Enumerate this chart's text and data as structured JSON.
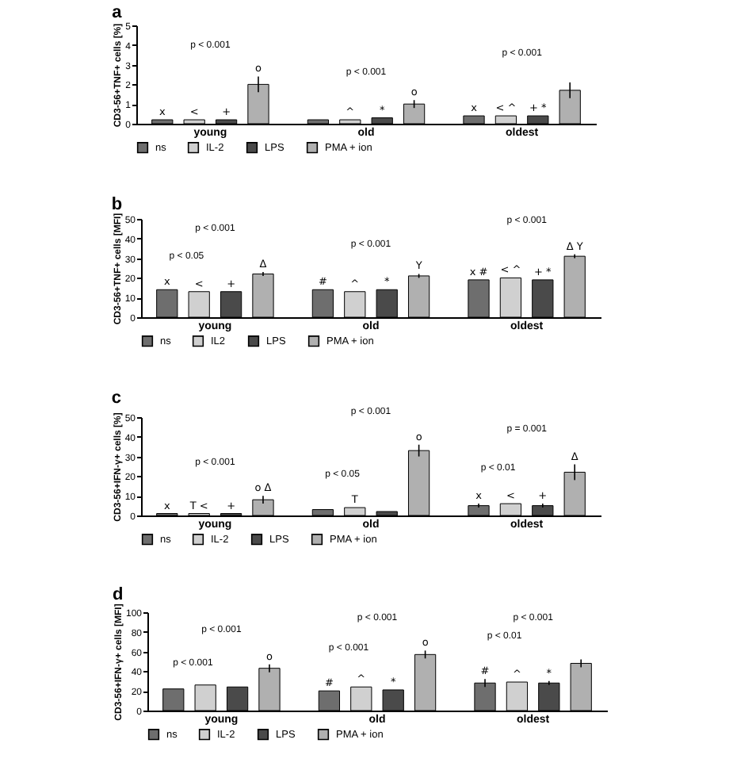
{
  "chart_data": [
    {
      "type": "bar",
      "title": "a",
      "ylabel": "CD3-56+TNF+ cells [%]",
      "categories": [
        "young",
        "old",
        "oldest"
      ],
      "ylim": [
        0,
        5
      ],
      "yticks": [
        0,
        1,
        2,
        3,
        4,
        5
      ],
      "legend": "bottom",
      "series": [
        {
          "name": "ns",
          "color": "#6e6e6e",
          "values": [
            0.2,
            0.2,
            0.4
          ],
          "value_labels": [
            "x",
            null,
            "x"
          ]
        },
        {
          "name": "IL-2",
          "color": "#d0d0d0",
          "values": [
            0.2,
            0.2,
            0.4
          ],
          "value_labels": [
            "<",
            "^",
            "< ^"
          ]
        },
        {
          "name": "LPS",
          "color": "#4a4a4a",
          "values": [
            0.2,
            0.3,
            0.4
          ],
          "value_labels": [
            "+",
            "*",
            "+ *"
          ]
        },
        {
          "name": "PMA + ion",
          "color": "#b0b0b0",
          "values": [
            2.0,
            1.0,
            1.7
          ],
          "errors": [
            0.4,
            0.2,
            0.4
          ],
          "value_labels": [
            "o",
            "o",
            null
          ]
        }
      ],
      "annotations": [
        "p < 0.001",
        "p < 0.001",
        "p < 0.001"
      ]
    },
    {
      "type": "bar",
      "title": "b",
      "ylabel": "CD3-56+TNF+ cells [MFI]",
      "categories": [
        "young",
        "old",
        "oldest"
      ],
      "ylim": [
        0,
        50
      ],
      "yticks": [
        0,
        10,
        20,
        30,
        40,
        50
      ],
      "legend": "bottom",
      "series": [
        {
          "name": "ns",
          "color": "#6e6e6e",
          "values": [
            14,
            14,
            19
          ],
          "value_labels": [
            "x",
            "#",
            "x #"
          ]
        },
        {
          "name": "IL2",
          "color": "#d0d0d0",
          "values": [
            13,
            13,
            20
          ],
          "value_labels": [
            "<",
            "^",
            "< ^"
          ]
        },
        {
          "name": "LPS",
          "color": "#4a4a4a",
          "values": [
            13,
            14,
            19
          ],
          "value_labels": [
            "+",
            "*",
            "+ *"
          ]
        },
        {
          "name": "PMA + ion",
          "color": "#b0b0b0",
          "values": [
            22,
            21,
            31
          ],
          "errors": [
            1,
            1,
            1
          ],
          "value_labels": [
            "Δ",
            "Y",
            "Δ Y"
          ]
        }
      ],
      "annotations": [
        "p < 0.001",
        "p < 0.05",
        "p < 0.001",
        "p < 0.001"
      ]
    },
    {
      "type": "bar",
      "title": "c",
      "ylabel": "CD3-56+IFN-γ+ cells [%]",
      "categories": [
        "young",
        "old",
        "oldest"
      ],
      "ylim": [
        0,
        50
      ],
      "yticks": [
        0,
        10,
        20,
        30,
        40,
        50
      ],
      "legend": "bottom",
      "series": [
        {
          "name": "ns",
          "color": "#6e6e6e",
          "values": [
            1,
            3,
            5
          ],
          "errors": [
            null,
            null,
            1
          ],
          "value_labels": [
            "x",
            null,
            "x"
          ]
        },
        {
          "name": "IL-2",
          "color": "#d0d0d0",
          "values": [
            1,
            4,
            6
          ],
          "value_labels": [
            "T <",
            "T",
            "<"
          ]
        },
        {
          "name": "LPS",
          "color": "#4a4a4a",
          "values": [
            1,
            2,
            5
          ],
          "errors": [
            null,
            null,
            1
          ],
          "value_labels": [
            "+",
            null,
            "+"
          ]
        },
        {
          "name": "PMA + ion",
          "color": "#b0b0b0",
          "values": [
            8,
            33,
            22
          ],
          "errors": [
            2,
            3,
            4
          ],
          "value_labels": [
            "o Δ",
            "o",
            "Δ"
          ]
        }
      ],
      "annotations": [
        "p < 0.001",
        "p < 0.05",
        "p < 0.001",
        "p < 0.01",
        "p = 0.001"
      ]
    },
    {
      "type": "bar",
      "title": "d",
      "ylabel": "CD3-56+IFN-γ+ cells [MFI]",
      "categories": [
        "young",
        "old",
        "oldest"
      ],
      "ylim": [
        0,
        100
      ],
      "yticks": [
        0,
        20,
        40,
        60,
        80,
        100
      ],
      "legend": "bottom",
      "series": [
        {
          "name": "ns",
          "color": "#6e6e6e",
          "values": [
            22,
            20,
            28
          ],
          "errors": [
            null,
            null,
            4
          ],
          "value_labels": [
            null,
            "#",
            "#"
          ]
        },
        {
          "name": "IL-2",
          "color": "#d0d0d0",
          "values": [
            26,
            24,
            29
          ],
          "value_labels": [
            null,
            "^",
            "^"
          ]
        },
        {
          "name": "LPS",
          "color": "#4a4a4a",
          "values": [
            24,
            21,
            28
          ],
          "errors": [
            null,
            null,
            2
          ],
          "value_labels": [
            null,
            "*",
            "*"
          ]
        },
        {
          "name": "PMA + ion",
          "color": "#b0b0b0",
          "values": [
            43,
            57,
            48
          ],
          "errors": [
            4,
            4,
            4
          ],
          "value_labels": [
            "o",
            "o",
            null
          ]
        }
      ],
      "annotations": [
        "p < 0.001",
        "p < 0.001",
        "p < 0.001",
        "p < 0.001",
        "p < 0.001",
        "p < 0.01"
      ]
    }
  ]
}
